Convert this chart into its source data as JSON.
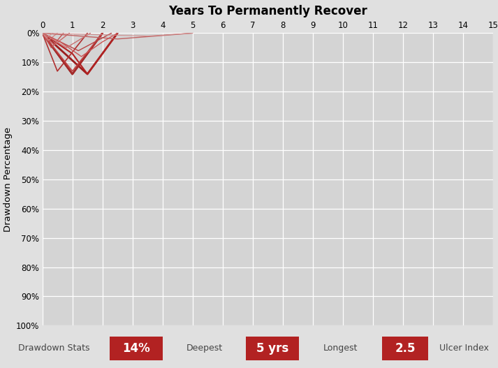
{
  "title": "Years To Permanently Recover",
  "xlim": [
    0,
    15
  ],
  "ylim": [
    100,
    0
  ],
  "ylabel": "Drawdown Percentage",
  "plot_bg_color": "#d4d4d4",
  "outer_bg_color": "#e0e0e0",
  "title_fontsize": 12,
  "all_paths": [
    {
      "x": [
        0,
        1.0,
        2.0
      ],
      "y": [
        0,
        14,
        0
      ],
      "color": "#8b1a1a",
      "lw": 2.0
    },
    {
      "x": [
        0,
        1.5,
        2.5
      ],
      "y": [
        0,
        14,
        0
      ],
      "color": "#9b1c1c",
      "lw": 2.0
    },
    {
      "x": [
        0,
        0.5,
        1.0,
        1.5,
        2.0
      ],
      "y": [
        0,
        7,
        14,
        7,
        0
      ],
      "color": "#a52a2a",
      "lw": 1.8
    },
    {
      "x": [
        0,
        1.0,
        1.5,
        2.0,
        2.5
      ],
      "y": [
        0,
        7,
        14,
        7,
        0
      ],
      "color": "#b22222",
      "lw": 1.5
    },
    {
      "x": [
        0,
        0.5,
        1.5
      ],
      "y": [
        0,
        13,
        0
      ],
      "color": "#b03030",
      "lw": 1.2
    },
    {
      "x": [
        0,
        1.0,
        2.0
      ],
      "y": [
        0,
        13,
        0
      ],
      "color": "#c04040",
      "lw": 1.2
    },
    {
      "x": [
        0,
        0.3,
        0.7
      ],
      "y": [
        0,
        5,
        0
      ],
      "color": "#c05050",
      "lw": 1.0
    },
    {
      "x": [
        0,
        0.4,
        0.9
      ],
      "y": [
        0,
        4,
        0
      ],
      "color": "#cc6666",
      "lw": 1.0
    },
    {
      "x": [
        0,
        0.2,
        0.5
      ],
      "y": [
        0,
        2.5,
        0
      ],
      "color": "#d08080",
      "lw": 0.9
    },
    {
      "x": [
        0,
        2.5,
        5.0
      ],
      "y": [
        0,
        2,
        0
      ],
      "color": "#c06060",
      "lw": 1.0
    },
    {
      "x": [
        0,
        1.2,
        2.3
      ],
      "y": [
        0,
        6,
        0
      ],
      "color": "#b84444",
      "lw": 1.0
    },
    {
      "x": [
        0,
        0.6,
        1.3,
        2.0,
        2.5
      ],
      "y": [
        0,
        3,
        8,
        3,
        0
      ],
      "color": "#cc5555",
      "lw": 1.0
    },
    {
      "x": [
        0,
        0.15,
        0.35
      ],
      "y": [
        0,
        1.5,
        0
      ],
      "color": "#d09090",
      "lw": 0.8
    },
    {
      "x": [
        0,
        0.8,
        1.6
      ],
      "y": [
        0,
        5,
        0
      ],
      "color": "#c87070",
      "lw": 1.0
    },
    {
      "x": [
        0,
        3.5,
        5.0
      ],
      "y": [
        0,
        1,
        0
      ],
      "color": "#d09090",
      "lw": 0.8
    }
  ],
  "stats_label": "Drawdown Stats",
  "deepest_label": "Deepest",
  "deepest_value": "14%",
  "longest_label": "Longest",
  "longest_value": "5 yrs",
  "ulcer_label": "Ulcer Index",
  "ulcer_value": "2.5",
  "stats_highlight_color": "#b22222",
  "stats_text_light": "#ffffff",
  "stats_text_dark": "#444444"
}
